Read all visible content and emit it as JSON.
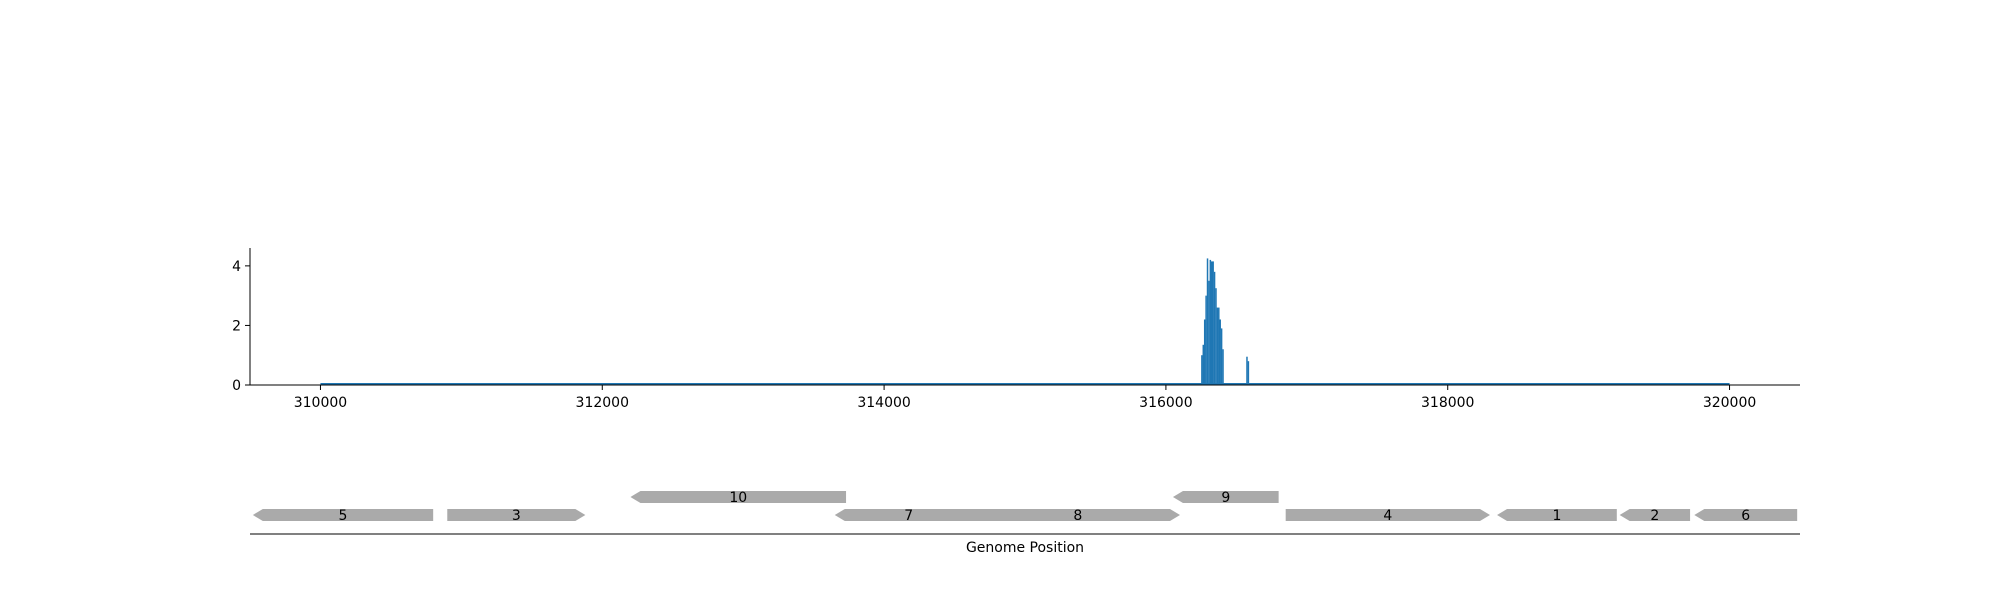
{
  "chart_data": {
    "type": "bar",
    "xlabel": "Genome Position",
    "ylabel": "",
    "xlim": [
      309500,
      320500
    ],
    "ylim": [
      0,
      4.6
    ],
    "x_ticks": [
      310000,
      312000,
      314000,
      316000,
      318000,
      320000
    ],
    "x_tick_labels": [
      "310000",
      "312000",
      "314000",
      "316000",
      "318000",
      "320000"
    ],
    "y_ticks": [
      0,
      2,
      4
    ],
    "y_tick_labels": [
      "0",
      "2",
      "4"
    ],
    "baseline_range": [
      310000,
      320000
    ],
    "bar_color": "#1f77b4",
    "gene_color": "#aaaaaa",
    "grid": false,
    "coverage": {
      "x": [
        316255,
        316265,
        316275,
        316285,
        316295,
        316305,
        316315,
        316325,
        316335,
        316345,
        316355,
        316365,
        316375,
        316385,
        316395,
        316405,
        316575,
        316585
      ],
      "y": [
        1.0,
        1.35,
        2.2,
        3.0,
        4.25,
        3.5,
        4.2,
        4.15,
        4.15,
        3.8,
        3.25,
        2.6,
        2.6,
        2.2,
        1.9,
        1.2,
        0.95,
        0.8
      ]
    },
    "genes": [
      {
        "label": "5",
        "start": 309520,
        "end": 310800,
        "strand": "-",
        "row": 0
      },
      {
        "label": "3",
        "start": 310900,
        "end": 311880,
        "strand": "+",
        "row": 0
      },
      {
        "label": "10",
        "start": 312200,
        "end": 313730,
        "strand": "-",
        "row": 1
      },
      {
        "label": "7",
        "start": 313650,
        "end": 314700,
        "strand": "-",
        "row": 0
      },
      {
        "label": "8",
        "start": 314650,
        "end": 316100,
        "strand": "+",
        "row": 0
      },
      {
        "label": "9",
        "start": 316050,
        "end": 316800,
        "strand": "-",
        "row": 1
      },
      {
        "label": "4",
        "start": 316850,
        "end": 318300,
        "strand": "+",
        "row": 0
      },
      {
        "label": "1",
        "start": 318350,
        "end": 319200,
        "strand": "-",
        "row": 0
      },
      {
        "label": "2",
        "start": 319220,
        "end": 319720,
        "strand": "-",
        "row": 0
      },
      {
        "label": "6",
        "start": 319750,
        "end": 320480,
        "strand": "-",
        "row": 0
      }
    ]
  }
}
